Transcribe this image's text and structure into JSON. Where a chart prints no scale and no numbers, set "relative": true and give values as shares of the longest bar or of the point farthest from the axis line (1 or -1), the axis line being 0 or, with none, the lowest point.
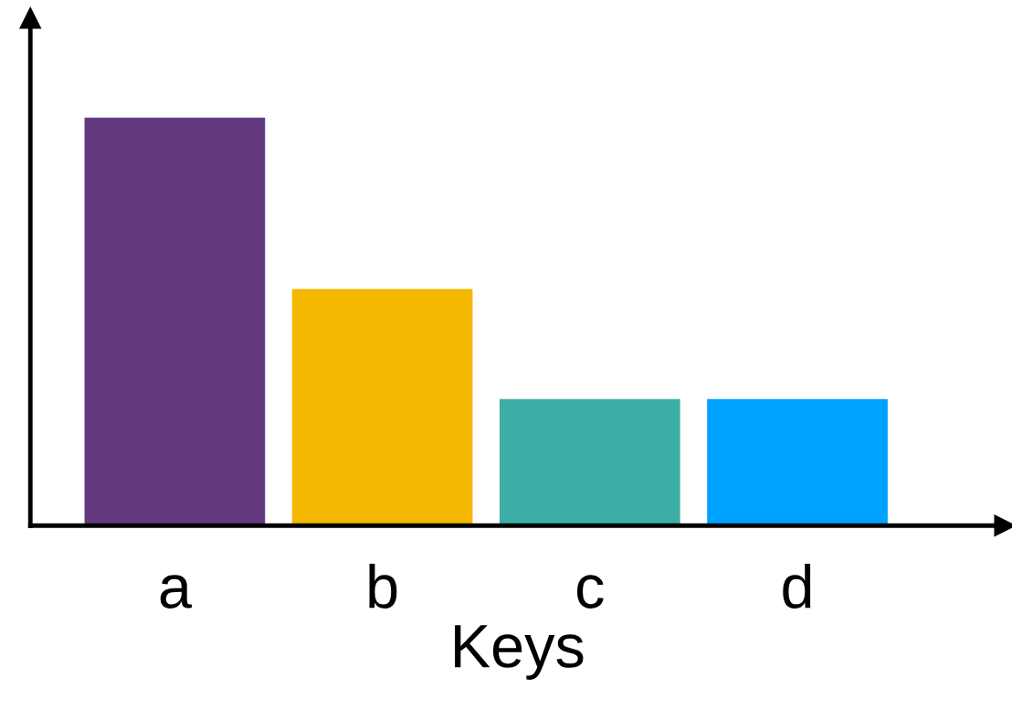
{
  "chart_data": {
    "type": "bar",
    "xlabel": "Keys",
    "relative": true,
    "categories": [
      "a",
      "b",
      "c",
      "d"
    ],
    "values": [
      1,
      0.58,
      0.31,
      0.31
    ],
    "colors": [
      "#633a80",
      "#f5b800",
      "#3daea5",
      "#00a2ff"
    ],
    "grid": false,
    "legend": false
  }
}
